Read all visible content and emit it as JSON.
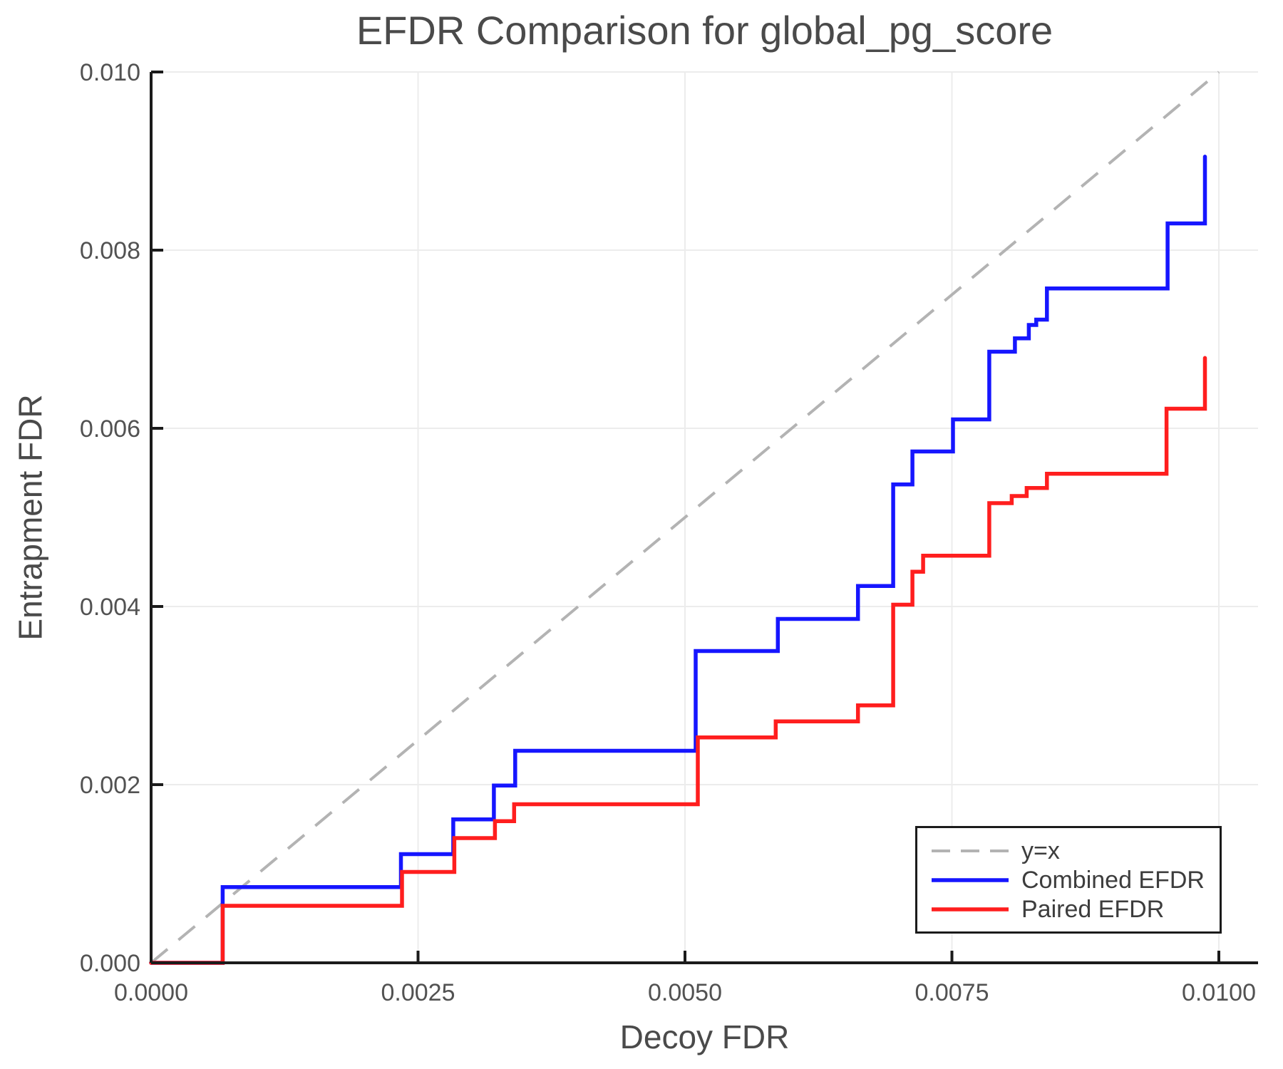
{
  "title": "EFDR Comparison for global_pg_score",
  "chart_data": {
    "type": "line",
    "subtype": "step-post",
    "title": "EFDR Comparison for global_pg_score",
    "xlabel": "Decoy FDR",
    "ylabel": "Entrapment FDR",
    "xlim": [
      0,
      0.010366
    ],
    "ylim": [
      0,
      0.01
    ],
    "grid": true,
    "grid_color": "#ececec",
    "spine_color": "#1b1b1b",
    "text_color": "#525252",
    "legend_position": "lower right",
    "x_ticks": [
      "0.0000",
      "0.0025",
      "0.0050",
      "0.0075",
      "0.0100"
    ],
    "x_tick_values": [
      0,
      0.0025,
      0.005,
      0.0075,
      0.01
    ],
    "y_ticks": [
      "0.000",
      "0.002",
      "0.004",
      "0.006",
      "0.008",
      "0.010"
    ],
    "y_tick_values": [
      0,
      0.002,
      0.004,
      0.006,
      0.008,
      0.01
    ],
    "reference_line": {
      "label": "y=x",
      "style": "dashed",
      "color": "#b3b3b3",
      "from": [
        0,
        0
      ],
      "to": [
        0.01,
        0.01
      ]
    },
    "series": [
      {
        "name": "Combined EFDR",
        "color": "#1616ff",
        "style": "solid",
        "steps": [
          [
            0.00067,
            0.00085
          ],
          [
            0.00234,
            0.00122
          ],
          [
            0.00283,
            0.00161
          ],
          [
            0.00321,
            0.00199
          ],
          [
            0.00341,
            0.00238
          ],
          [
            0.0051,
            0.0035
          ],
          [
            0.00587,
            0.00386
          ],
          [
            0.00662,
            0.00423
          ],
          [
            0.00695,
            0.00537
          ],
          [
            0.00713,
            0.00574
          ],
          [
            0.00751,
            0.0061
          ],
          [
            0.00785,
            0.00686
          ],
          [
            0.00809,
            0.00701
          ],
          [
            0.00822,
            0.00716
          ],
          [
            0.00829,
            0.00722
          ],
          [
            0.00839,
            0.00757
          ],
          [
            0.00952,
            0.0083
          ],
          [
            0.00987,
            0.00905
          ]
        ]
      },
      {
        "name": "Paired EFDR",
        "color": "#ff1e1e",
        "style": "solid",
        "steps": [
          [
            0.00067,
            0.00064
          ],
          [
            0.00235,
            0.00102
          ],
          [
            0.00284,
            0.0014
          ],
          [
            0.00322,
            0.00159
          ],
          [
            0.0034,
            0.00178
          ],
          [
            0.00512,
            0.00253
          ],
          [
            0.00585,
            0.00271
          ],
          [
            0.00662,
            0.00289
          ],
          [
            0.00695,
            0.00402
          ],
          [
            0.00713,
            0.00439
          ],
          [
            0.00723,
            0.00457
          ],
          [
            0.00785,
            0.00516
          ],
          [
            0.00806,
            0.00524
          ],
          [
            0.0082,
            0.00533
          ],
          [
            0.00839,
            0.00549
          ],
          [
            0.00951,
            0.00622
          ],
          [
            0.00987,
            0.00679
          ]
        ]
      }
    ],
    "legend": {
      "items": [
        {
          "label": "y=x",
          "color": "#b3b3b3",
          "style": "dashed"
        },
        {
          "label": "Combined EFDR",
          "color": "#1616ff",
          "style": "solid"
        },
        {
          "label": "Paired EFDR",
          "color": "#ff1e1e",
          "style": "solid"
        }
      ]
    }
  }
}
